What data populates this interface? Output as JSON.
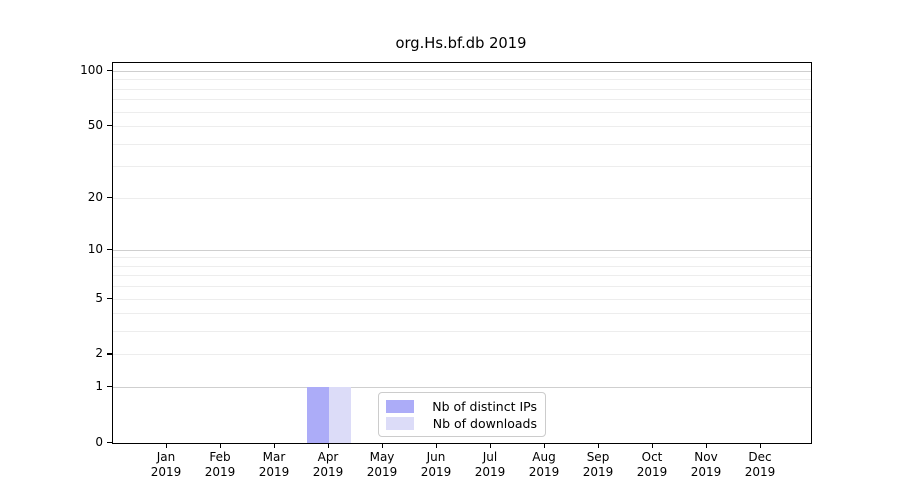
{
  "chart_data": {
    "type": "bar",
    "title": "org.Hs.bf.db 2019",
    "categories": [
      "Jan",
      "Feb",
      "Mar",
      "Apr",
      "May",
      "Jun",
      "Jul",
      "Aug",
      "Sep",
      "Oct",
      "Nov",
      "Dec"
    ],
    "year_label": "2019",
    "series": [
      {
        "name": "Nb of distinct IPs",
        "key": "distinct-ips",
        "color": "#acacf8",
        "values": [
          0,
          0,
          0,
          1,
          0,
          0,
          0,
          0,
          0,
          0,
          0,
          0
        ]
      },
      {
        "name": "Nb of downloads",
        "key": "downloads",
        "color": "#dcdcf8",
        "values": [
          0,
          0,
          0,
          1,
          0,
          0,
          0,
          0,
          0,
          0,
          0,
          0
        ]
      }
    ],
    "y_axis": {
      "scale": "log1p",
      "tick_labels": [
        0,
        1,
        2,
        5,
        10,
        20,
        50,
        100
      ],
      "gridlines_major": [
        1,
        10,
        100
      ],
      "gridlines_minor": [
        2,
        3,
        4,
        5,
        6,
        7,
        8,
        9,
        20,
        30,
        40,
        50,
        60,
        70,
        80,
        90
      ]
    },
    "legend": {
      "position": "lower center"
    },
    "colors": {
      "grid_major": "#cfcfcf",
      "grid_minor": "#ededed",
      "spine": "#000000",
      "legend_border": "#cccccc"
    }
  }
}
